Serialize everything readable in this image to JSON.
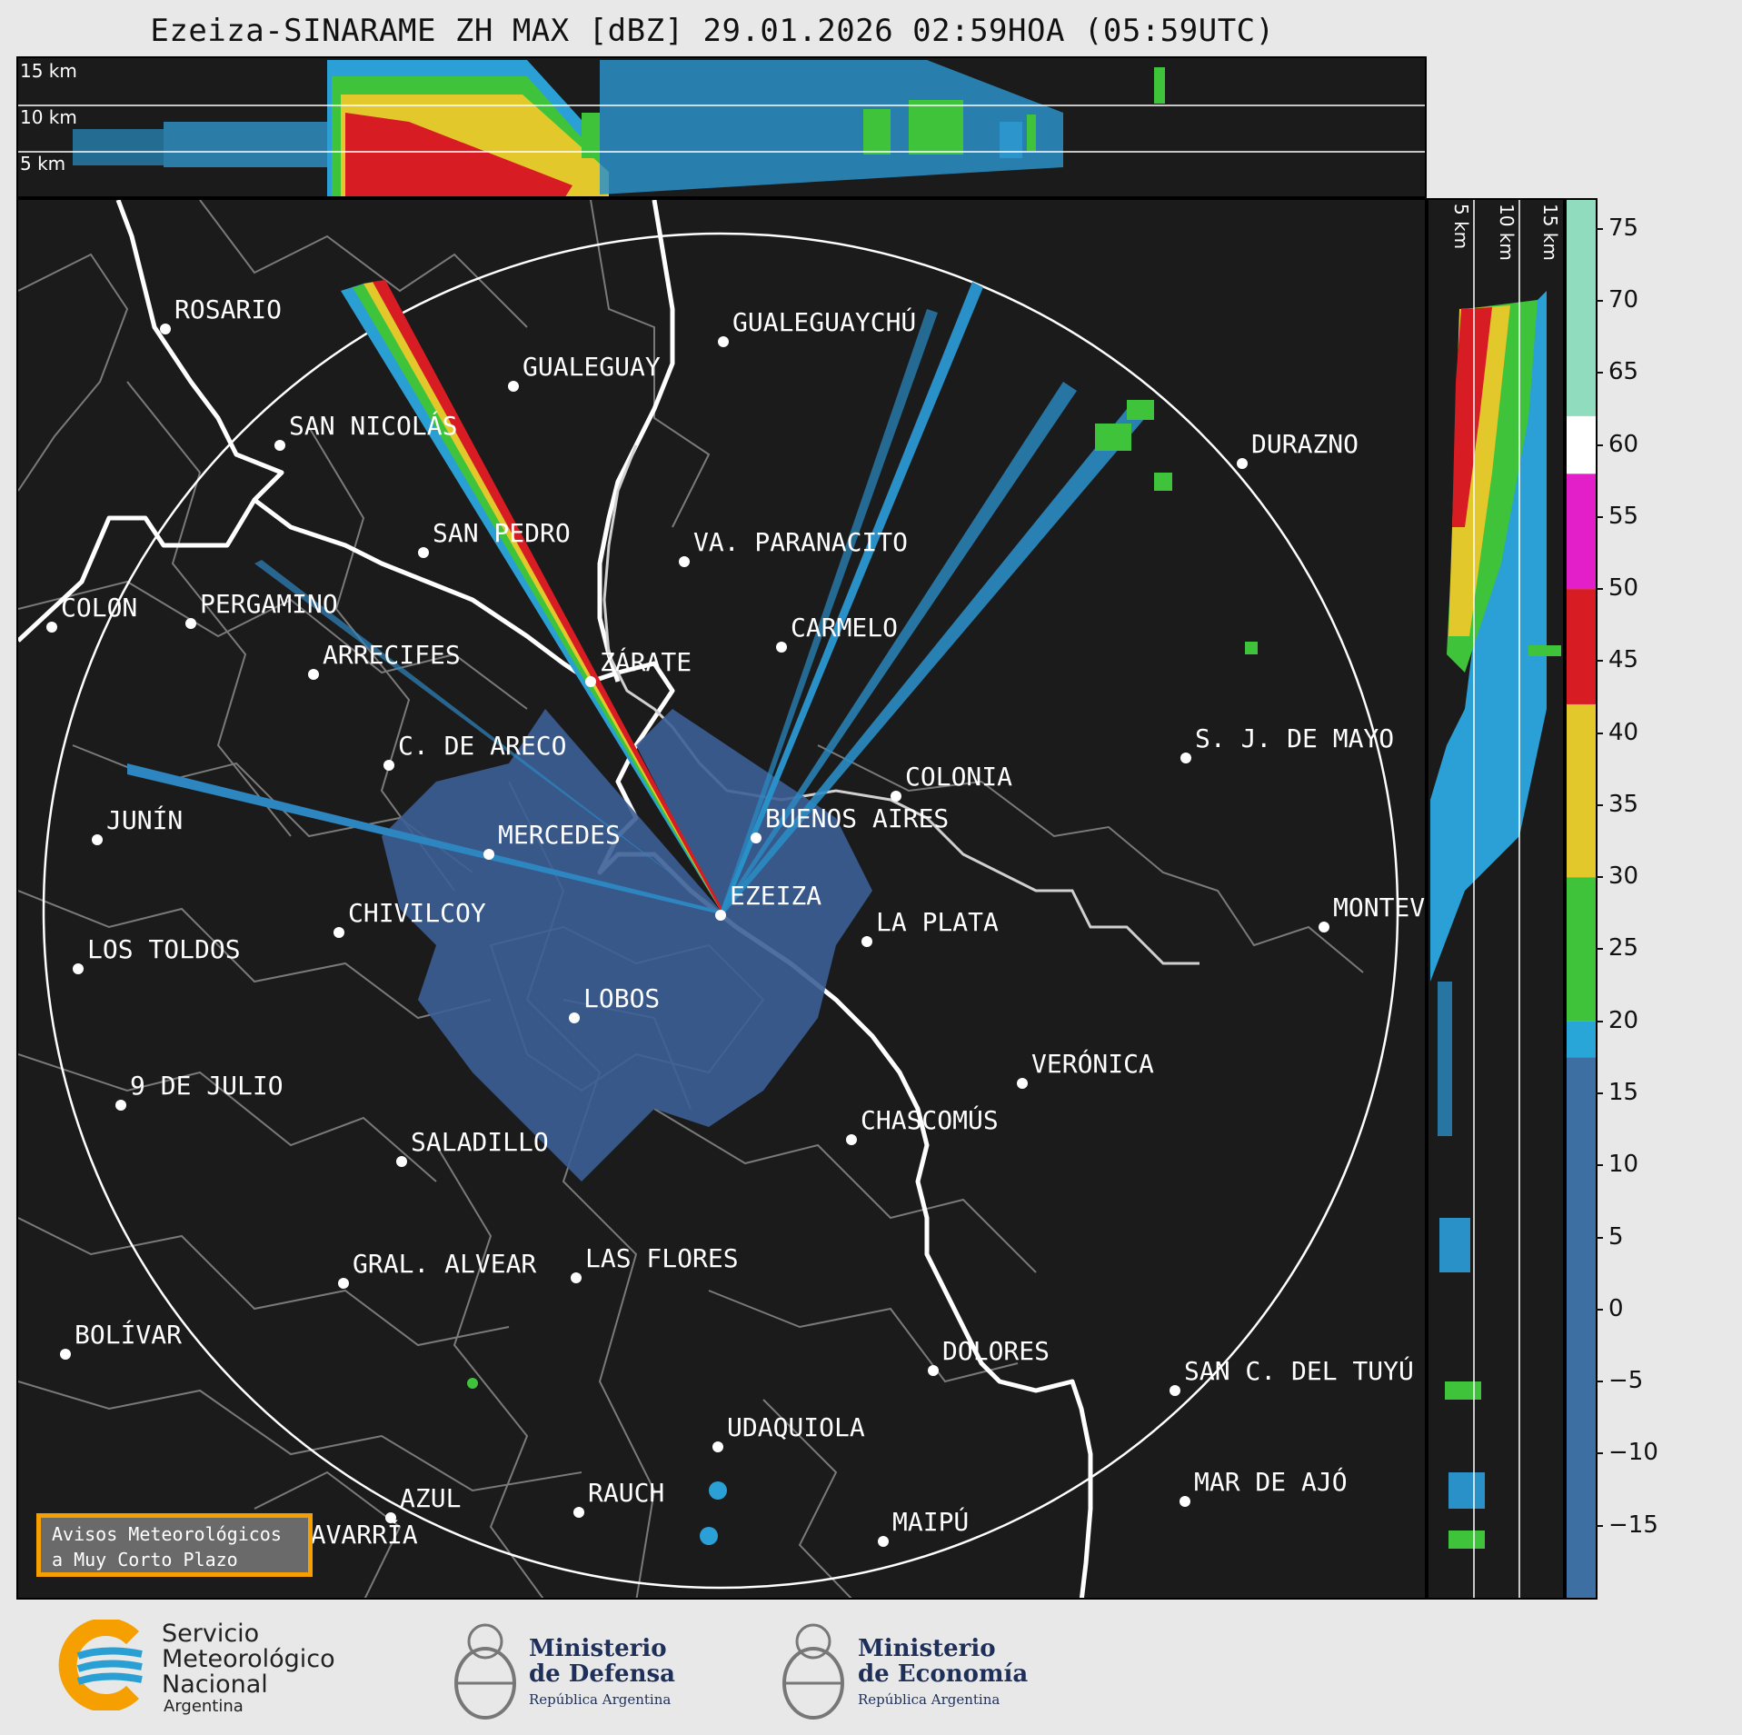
{
  "title": "Ezeiza-SINARAME ZH MAX [dBZ] 29.01.2026 02:59HOA (05:59UTC)",
  "top_panel": {
    "height_labels": [
      "15 km",
      "10 km",
      "5 km"
    ]
  },
  "side_panel": {
    "height_labels": [
      "5 km",
      "10 km",
      "15 km"
    ]
  },
  "colorbar": {
    "unit": "dBZ",
    "ticks": [
      "75",
      "70",
      "65",
      "60",
      "55",
      "50",
      "45",
      "40",
      "35",
      "30",
      "25",
      "20",
      "15",
      "10",
      "5",
      "0",
      "−5",
      "−10",
      "−15"
    ],
    "range": [
      -20,
      77
    ],
    "bands": [
      {
        "from": -20,
        "to": 17.5,
        "color": "#3d6fa3"
      },
      {
        "from": 17.5,
        "to": 20,
        "color": "#29a6d8"
      },
      {
        "from": 20,
        "to": 30,
        "color": "#3ec33a"
      },
      {
        "from": 30,
        "to": 42,
        "color": "#e3c82c"
      },
      {
        "from": 42,
        "to": 50,
        "color": "#d81c24"
      },
      {
        "from": 50,
        "to": 58,
        "color": "#e31fc9"
      },
      {
        "from": 58,
        "to": 62,
        "color": "#ffffff"
      },
      {
        "from": 62,
        "to": 77,
        "color": "#8fdcbf"
      }
    ]
  },
  "cities": [
    {
      "name": "ROSARIO"
    },
    {
      "name": "GUALEGUAYCHÚ"
    },
    {
      "name": "GUALEGUAY"
    },
    {
      "name": "SAN NICOLÁS"
    },
    {
      "name": "DURAZNO"
    },
    {
      "name": "SAN PEDRO"
    },
    {
      "name": "VA. PARANACITO"
    },
    {
      "name": "COLON"
    },
    {
      "name": "PERGAMINO"
    },
    {
      "name": "CARMELO"
    },
    {
      "name": "ARRECIFES"
    },
    {
      "name": "ZÁRATE"
    },
    {
      "name": "S. J. DE MAYO"
    },
    {
      "name": "C. DE ARECO"
    },
    {
      "name": "COLONIA"
    },
    {
      "name": "JUNÍN"
    },
    {
      "name": "BUENOS AIRES"
    },
    {
      "name": "MERCEDES"
    },
    {
      "name": "EZEIZA"
    },
    {
      "name": "MONTEVIDEO"
    },
    {
      "name": "CHIVILCOY"
    },
    {
      "name": "LA PLATA"
    },
    {
      "name": "LOS TOLDOS"
    },
    {
      "name": "LOBOS"
    },
    {
      "name": "VERÓNICA"
    },
    {
      "name": "9 DE JULIO"
    },
    {
      "name": "CHASCOMÚS"
    },
    {
      "name": "SALADILLO"
    },
    {
      "name": "GRAL. ALVEAR"
    },
    {
      "name": "LAS FLORES"
    },
    {
      "name": "BOLÍVAR"
    },
    {
      "name": "DOLORES"
    },
    {
      "name": "SAN C. DEL TUYÚ"
    },
    {
      "name": "UDAQUIOLA"
    },
    {
      "name": "AZUL"
    },
    {
      "name": "RAUCH"
    },
    {
      "name": "MAR DE AJÓ"
    },
    {
      "name": "OLAVARRÍA"
    },
    {
      "name": "MAIPÚ"
    }
  ],
  "notice": {
    "line1": "Avisos Meteorológicos",
    "line2": "a Muy Corto Plazo"
  },
  "logos": {
    "smn": [
      "Servicio",
      "Meteorológico",
      "Nacional",
      "Argentina"
    ],
    "defensa": [
      "Ministerio",
      "de Defensa",
      "República Argentina"
    ],
    "economia": [
      "Ministerio",
      "de Economía",
      "República Argentina"
    ]
  }
}
